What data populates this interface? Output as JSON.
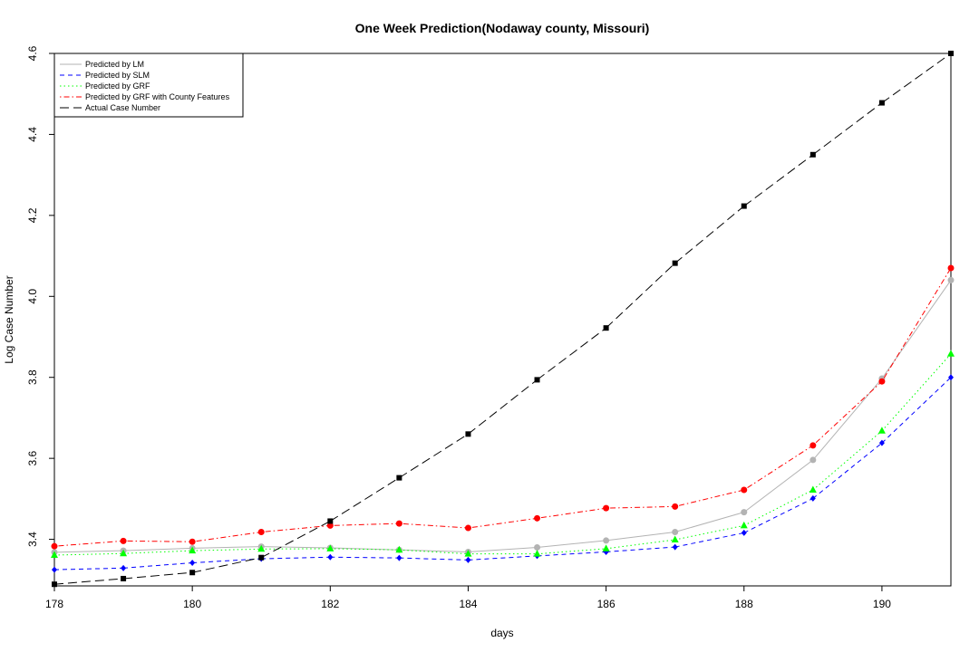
{
  "chart_data": {
    "type": "line",
    "title": "One Week Prediction(Nodaway county, Missouri)",
    "xlabel": "days",
    "ylabel": "Log Case Number",
    "xlim": [
      178,
      191
    ],
    "ylim": [
      3.285,
      4.6
    ],
    "xticks": [
      "178",
      "180",
      "182",
      "184",
      "186",
      "188",
      "190"
    ],
    "yticks": [
      "3.4",
      "3.6",
      "3.8",
      "4.0",
      "4.2",
      "4.4",
      "4.6"
    ],
    "grid": false,
    "legend_position": "top-left",
    "x": [
      178,
      179,
      180,
      181,
      182,
      183,
      184,
      185,
      186,
      187,
      188,
      189,
      190,
      191
    ],
    "series": [
      {
        "name": "Predicted by LM",
        "color": "#b3b3b3",
        "line_style": "solid",
        "marker": "circle",
        "values": [
          3.368,
          3.372,
          3.378,
          3.382,
          3.379,
          3.374,
          3.369,
          3.38,
          3.397,
          3.418,
          3.467,
          3.596,
          3.797,
          4.04
        ]
      },
      {
        "name": "Predicted by SLM",
        "color": "#0000ff",
        "line_style": "dashed",
        "marker": "diamond",
        "values": [
          3.325,
          3.329,
          3.342,
          3.352,
          3.356,
          3.354,
          3.349,
          3.359,
          3.369,
          3.381,
          3.416,
          3.501,
          3.638,
          3.8
        ]
      },
      {
        "name": "Predicted by GRF",
        "color": "#00ff00",
        "line_style": "dotted",
        "marker": "triangle",
        "values": [
          3.361,
          3.365,
          3.372,
          3.376,
          3.377,
          3.374,
          3.364,
          3.364,
          3.377,
          3.399,
          3.434,
          3.522,
          3.668,
          3.858
        ]
      },
      {
        "name": "Predicted by GRF with County Features",
        "color": "#ff0000",
        "line_style": "dotdash",
        "marker": "circle",
        "values": [
          3.383,
          3.396,
          3.394,
          3.418,
          3.434,
          3.439,
          3.428,
          3.452,
          3.477,
          3.481,
          3.522,
          3.632,
          3.79,
          4.07
        ]
      },
      {
        "name": "Actual Case Number",
        "color": "#000000",
        "line_style": "longdash",
        "marker": "square",
        "values": [
          3.289,
          3.303,
          3.318,
          3.355,
          3.445,
          3.552,
          3.66,
          3.794,
          3.922,
          4.082,
          4.223,
          4.35,
          4.478,
          4.6
        ]
      }
    ]
  }
}
